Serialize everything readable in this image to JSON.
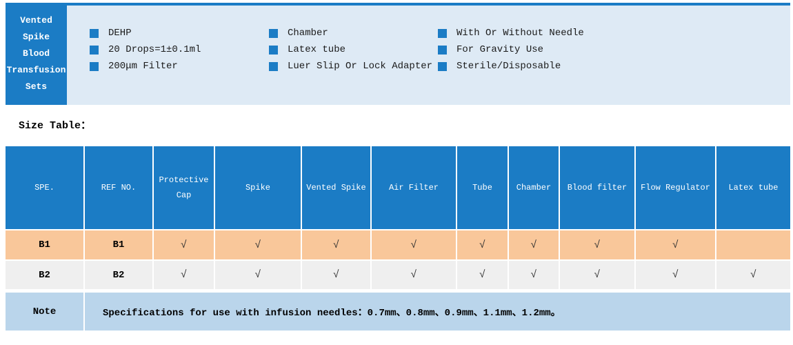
{
  "header": {
    "title_lines": [
      "Vented",
      "Spike",
      "Blood",
      "Transfusion",
      "Sets"
    ],
    "features": [
      [
        "DEHP",
        "20 Drops=1±0.1ml",
        "200μm Filter"
      ],
      [
        "Chamber",
        "Latex tube",
        "Luer Slip Or Lock Adapter"
      ],
      [
        "With Or Without Needle",
        "For Gravity Use",
        "Sterile/Disposable"
      ]
    ]
  },
  "section_label": "Size Table：",
  "table": {
    "columns": [
      "SPE.",
      "REF NO.",
      "Protective Cap",
      "Spike",
      "Vented Spike",
      "Air Filter",
      "Tube",
      "Chamber",
      "Blood filter",
      "Flow Regulator",
      "Latex tube"
    ],
    "rows": [
      {
        "name": "B1",
        "cells": [
          "B1",
          "B1",
          "√",
          "√",
          "√",
          "√",
          "√",
          "√",
          "√",
          "√",
          ""
        ]
      },
      {
        "name": "B2",
        "cells": [
          "B2",
          "B2",
          "√",
          "√",
          "√",
          "√",
          "√",
          "√",
          "√",
          "√",
          "√"
        ]
      }
    ],
    "note_label": "Note",
    "note_text": "Specifications for use with infusion needles：0.7mm、0.8mm、0.9mm、1.1mm、1.2mm。"
  },
  "colors": {
    "accent_blue": "#1b7cc5",
    "panel_light_blue": "#deeaf5",
    "note_light_blue": "#bad5eb",
    "row_b1_orange": "#f9c79a",
    "row_b2_gray": "#efefef"
  }
}
